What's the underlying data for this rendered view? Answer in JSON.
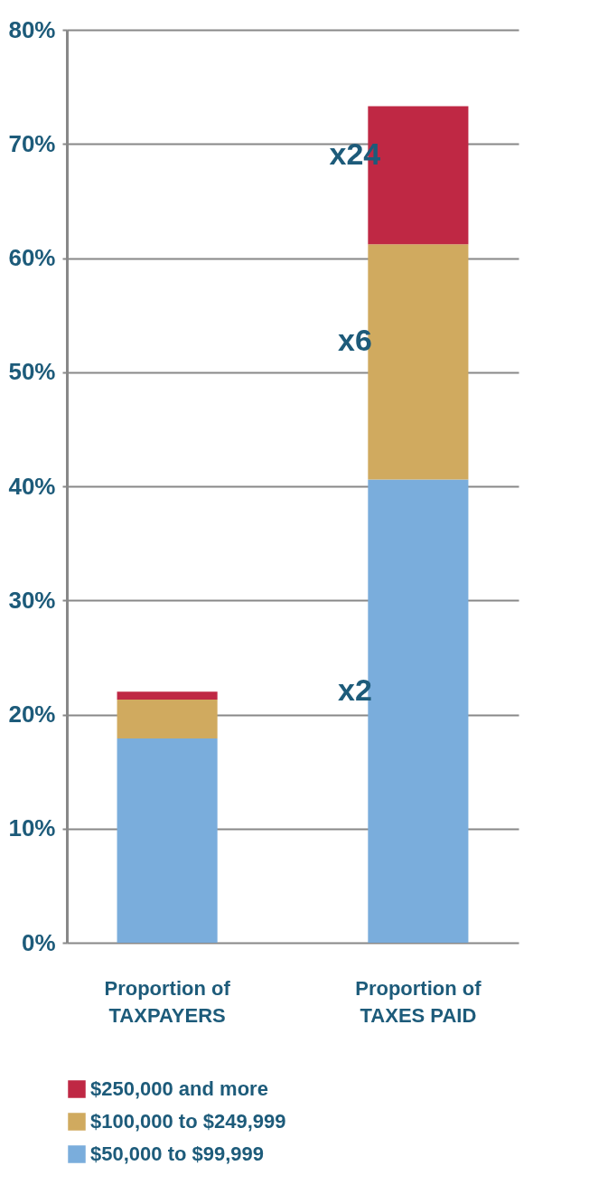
{
  "chart_data": {
    "type": "bar",
    "stacked": true,
    "categories": [
      "Proportion of\nTAXPAYERS",
      "Proportion of\nTAXES PAID"
    ],
    "series": [
      {
        "name": "$50,000 to $99,999",
        "color": "#7aaddc",
        "values": [
          17.9,
          40.6
        ]
      },
      {
        "name": "$100,000 to $249,999",
        "color": "#d0aa5f",
        "values": [
          3.4,
          20.6
        ]
      },
      {
        "name": "$250,000 and more",
        "color": "#bf2844",
        "values": [
          0.7,
          12.1
        ]
      }
    ],
    "ylim": [
      0,
      80
    ],
    "yticks": [
      {
        "value": 0,
        "label": "0%"
      },
      {
        "value": 10,
        "label": "10%"
      },
      {
        "value": 20,
        "label": "20%"
      },
      {
        "value": 30,
        "label": "30%"
      },
      {
        "value": 40,
        "label": "40%"
      },
      {
        "value": 50,
        "label": "50%"
      },
      {
        "value": 60,
        "label": "60%"
      },
      {
        "value": 70,
        "label": "70%"
      },
      {
        "value": 80,
        "label": "80%"
      }
    ],
    "grid": "y",
    "legend": "bottom",
    "annotations": [
      "x2",
      "x6",
      "x24"
    ]
  }
}
